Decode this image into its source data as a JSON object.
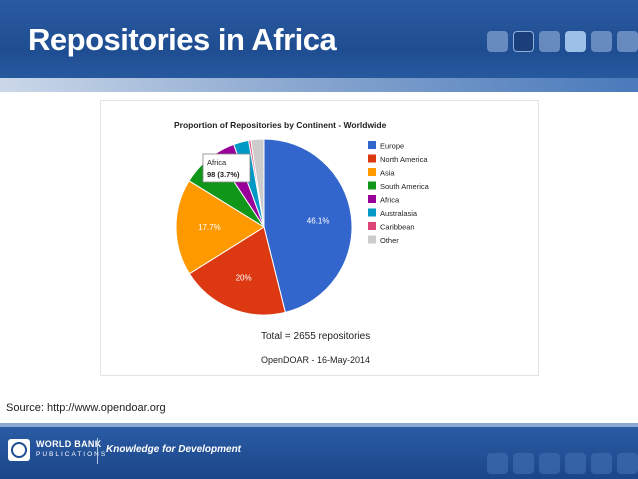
{
  "slide": {
    "title": "Repositories in Africa",
    "source": "Source: http://www.opendoar.org"
  },
  "footer": {
    "logo_line1": "WORLD BANK",
    "logo_line2": "PUBLICATIONS",
    "tagline": "Knowledge for Development"
  },
  "chart_data": {
    "type": "pie",
    "title": "Proportion of Repositories by Continent - Worldwide",
    "slices": [
      {
        "label": "Europe",
        "percent": 46.1,
        "color": "#3366cc",
        "data_label": "46.1%"
      },
      {
        "label": "North America",
        "percent": 20.0,
        "color": "#dc3912",
        "data_label": "20%"
      },
      {
        "label": "Asia",
        "percent": 17.7,
        "color": "#ff9900",
        "data_label": "17.7%"
      },
      {
        "label": "South America",
        "percent": 6.9,
        "color": "#109618",
        "data_label": ""
      },
      {
        "label": "Africa",
        "percent": 3.7,
        "color": "#990099",
        "data_label": ""
      },
      {
        "label": "Australasia",
        "percent": 2.8,
        "color": "#0099c6",
        "data_label": ""
      },
      {
        "label": "Caribbean",
        "percent": 0.4,
        "color": "#dd4477",
        "data_label": ""
      },
      {
        "label": "Other",
        "percent": 2.4,
        "color": "#cccccc",
        "data_label": ""
      }
    ],
    "tooltip": {
      "label": "Africa",
      "value": "98 (3.7%)"
    },
    "legend_position": "right",
    "total_text": "Total = 2655 repositories",
    "caption": "OpenDOAR - 16-May-2014"
  }
}
